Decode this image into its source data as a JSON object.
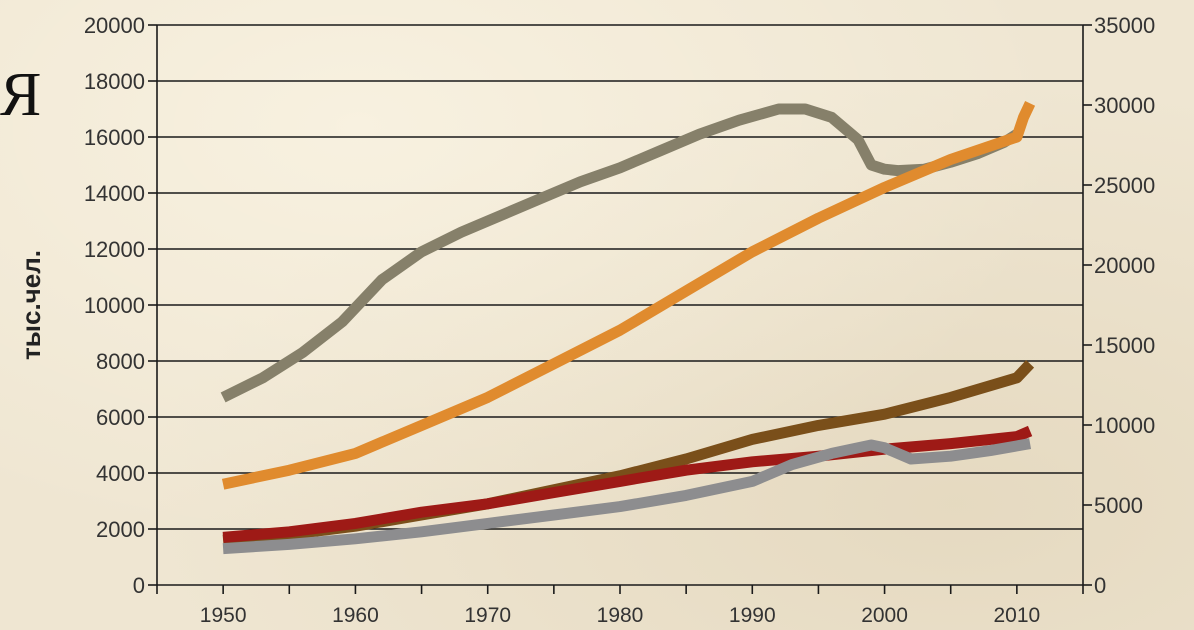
{
  "corner_text": "Я",
  "chart_data": {
    "type": "line",
    "ylabel": "тыс.чел.",
    "ylim": [
      0,
      20000
    ],
    "y2lim": [
      0,
      35000
    ],
    "yticks": [
      "0",
      "2000",
      "4000",
      "6000",
      "8000",
      "10000",
      "12000",
      "14000",
      "16000",
      "18000",
      "20000"
    ],
    "y2ticks": [
      "0",
      "5000",
      "10000",
      "15000",
      "20000",
      "25000",
      "30000",
      "35000"
    ],
    "xlim": [
      1945,
      2015
    ],
    "xticks": [
      "1950",
      "1960",
      "1970",
      "1980",
      "1990",
      "2000",
      "2010"
    ],
    "grid": true,
    "series": [
      {
        "color": "#86806a",
        "axis": "left",
        "x": [
          1950,
          1953,
          1956,
          1959,
          1962,
          1965,
          1968,
          1971,
          1974,
          1977,
          1980,
          1983,
          1986,
          1989,
          1992,
          1994,
          1996,
          1998,
          1999,
          2000,
          2001,
          2003,
          2005,
          2007,
          2009,
          2010
        ],
        "values": [
          6700,
          7400,
          8300,
          9400,
          10900,
          11900,
          12600,
          13200,
          13800,
          14400,
          14900,
          15500,
          16100,
          16600,
          17000,
          17000,
          16700,
          15900,
          15000,
          14850,
          14800,
          14850,
          15100,
          15400,
          15800,
          16100
        ]
      },
      {
        "color": "#e08b2e",
        "axis": "left",
        "x": [
          1950,
          1955,
          1960,
          1965,
          1970,
          1975,
          1980,
          1985,
          1990,
          1995,
          2000,
          2005,
          2010,
          2010.5,
          2011
        ],
        "values": [
          3600,
          4100,
          4700,
          5700,
          6700,
          7900,
          9100,
          10500,
          11900,
          13100,
          14200,
          15200,
          16000,
          16700,
          17200
        ]
      },
      {
        "color": "#7a4f1a",
        "axis": "left",
        "x": [
          1950,
          1955,
          1960,
          1965,
          1970,
          1975,
          1980,
          1985,
          1990,
          1995,
          2000,
          2005,
          2010,
          2011
        ],
        "values": [
          1600,
          1800,
          2100,
          2500,
          2900,
          3400,
          3900,
          4500,
          5200,
          5700,
          6100,
          6700,
          7400,
          7900
        ]
      },
      {
        "color": "#9e1a16",
        "axis": "left",
        "x": [
          1950,
          1955,
          1960,
          1965,
          1970,
          1975,
          1980,
          1985,
          1990,
          1995,
          2000,
          2005,
          2010,
          2011
        ],
        "values": [
          1700,
          1900,
          2200,
          2600,
          2900,
          3300,
          3700,
          4100,
          4400,
          4600,
          4850,
          5050,
          5300,
          5500
        ]
      },
      {
        "color": "#8d8d8f",
        "axis": "left",
        "x": [
          1950,
          1955,
          1960,
          1965,
          1970,
          1975,
          1980,
          1985,
          1990,
          1993,
          1996,
          1999,
          2000,
          2002,
          2005,
          2008,
          2011
        ],
        "values": [
          1300,
          1450,
          1650,
          1900,
          2200,
          2500,
          2800,
          3200,
          3700,
          4300,
          4700,
          5000,
          4900,
          4500,
          4600,
          4800,
          5050
        ]
      }
    ]
  }
}
